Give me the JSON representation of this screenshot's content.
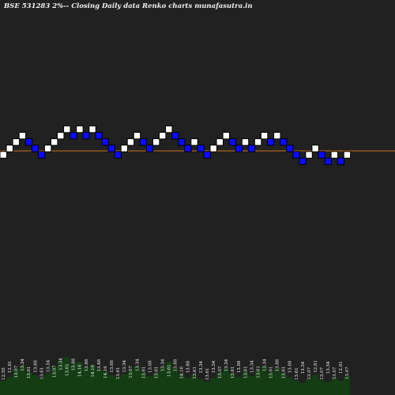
{
  "title": "BSE 531283 2%-- Closing Daily data Renko charts munafasutra.in",
  "chart_data": {
    "type": "renko",
    "title": "BSE 531283 2%-- Closing Daily data Renko charts munafasutra.in",
    "brick_size_percent": 2,
    "current_level_brick": 0,
    "bricks": [
      {
        "dir": "up",
        "level": 0
      },
      {
        "dir": "up",
        "level": 1
      },
      {
        "dir": "up",
        "level": 2
      },
      {
        "dir": "up",
        "level": 3
      },
      {
        "dir": "down",
        "level": 2
      },
      {
        "dir": "down",
        "level": 1
      },
      {
        "dir": "down",
        "level": 0
      },
      {
        "dir": "up",
        "level": 1
      },
      {
        "dir": "up",
        "level": 2
      },
      {
        "dir": "up",
        "level": 3
      },
      {
        "dir": "up",
        "level": 4
      },
      {
        "dir": "down",
        "level": 3
      },
      {
        "dir": "up",
        "level": 4
      },
      {
        "dir": "down",
        "level": 3
      },
      {
        "dir": "up",
        "level": 4
      },
      {
        "dir": "down",
        "level": 3
      },
      {
        "dir": "down",
        "level": 2
      },
      {
        "dir": "down",
        "level": 1
      },
      {
        "dir": "down",
        "level": 0
      },
      {
        "dir": "up",
        "level": 1
      },
      {
        "dir": "up",
        "level": 2
      },
      {
        "dir": "up",
        "level": 3
      },
      {
        "dir": "down",
        "level": 2
      },
      {
        "dir": "down",
        "level": 1
      },
      {
        "dir": "up",
        "level": 2
      },
      {
        "dir": "up",
        "level": 3
      },
      {
        "dir": "up",
        "level": 4
      },
      {
        "dir": "down",
        "level": 3
      },
      {
        "dir": "down",
        "level": 2
      },
      {
        "dir": "down",
        "level": 1
      },
      {
        "dir": "up",
        "level": 2
      },
      {
        "dir": "down",
        "level": 1
      },
      {
        "dir": "down",
        "level": 0
      },
      {
        "dir": "up",
        "level": 1
      },
      {
        "dir": "up",
        "level": 2
      },
      {
        "dir": "up",
        "level": 3
      },
      {
        "dir": "down",
        "level": 2
      },
      {
        "dir": "down",
        "level": 1
      },
      {
        "dir": "up",
        "level": 2
      },
      {
        "dir": "down",
        "level": 1
      },
      {
        "dir": "up",
        "level": 2
      },
      {
        "dir": "up",
        "level": 3
      },
      {
        "dir": "down",
        "level": 2
      },
      {
        "dir": "up",
        "level": 3
      },
      {
        "dir": "down",
        "level": 2
      },
      {
        "dir": "down",
        "level": 1
      },
      {
        "dir": "down",
        "level": 0
      },
      {
        "dir": "down",
        "level": -1
      },
      {
        "dir": "up",
        "level": 0
      },
      {
        "dir": "up",
        "level": 1
      },
      {
        "dir": "down",
        "level": 0
      },
      {
        "dir": "down",
        "level": -1
      },
      {
        "dir": "up",
        "level": 0
      },
      {
        "dir": "down",
        "level": -1
      },
      {
        "dir": "up",
        "level": 0
      }
    ],
    "price_labels": [
      "12.55",
      "12.81",
      "13.07",
      "13.34",
      "13.61",
      "13.88",
      "13.61",
      "13.34",
      "13.07",
      "13.34",
      "13.61",
      "13.88",
      "14.16",
      "13.88",
      "14.16",
      "13.88",
      "14.16",
      "13.88",
      "13.61",
      "13.34",
      "13.07",
      "13.34",
      "13.61",
      "13.88",
      "13.61",
      "13.34",
      "13.61",
      "13.88",
      "14.16",
      "13.88",
      "13.61",
      "13.34",
      "13.61",
      "13.34",
      "13.07",
      "13.34",
      "13.61",
      "13.88",
      "13.61",
      "13.34",
      "13.61",
      "13.34",
      "13.61",
      "13.88",
      "13.61",
      "13.88",
      "13.61",
      "13.34",
      "13.07",
      "12.81",
      "13.07",
      "13.34",
      "13.07",
      "12.81",
      "13.07"
    ],
    "volume_levels": [
      0.3,
      0.38,
      0.55,
      0.62,
      0.48,
      0.42,
      0.35,
      0.45,
      0.6,
      0.72,
      0.8,
      0.66,
      0.7,
      0.58,
      0.64,
      0.55,
      0.5,
      0.42,
      0.38,
      0.44,
      0.52,
      0.6,
      0.48,
      0.4,
      0.46,
      0.58,
      0.7,
      0.56,
      0.44,
      0.36,
      0.42,
      0.34,
      0.28,
      0.36,
      0.48,
      0.56,
      0.46,
      0.38,
      0.5,
      0.4,
      0.52,
      0.6,
      0.48,
      0.56,
      0.46,
      0.38,
      0.3,
      0.26,
      0.34,
      0.42,
      0.32,
      0.28,
      0.36,
      0.3,
      0.4
    ],
    "colors": {
      "background": "#212121",
      "up_brick": "#ffffff",
      "down_brick": "#0b0bff",
      "current_line": "#c8741c",
      "volume": "#143d14",
      "label": "#f2f2f2"
    },
    "grid": false
  }
}
